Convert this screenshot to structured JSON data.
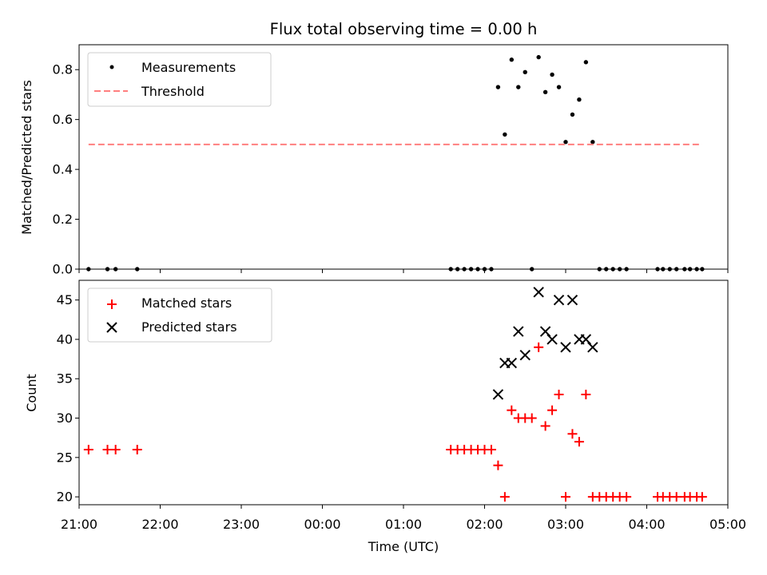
{
  "chart_data": {
    "title": "Flux total observing time = 0.00 h",
    "x_label": "Time (UTC)",
    "x_type": "time",
    "x_range": [
      "21:00",
      "05:00"
    ],
    "x_ticks": [
      "21:00",
      "22:00",
      "23:00",
      "00:00",
      "01:00",
      "02:00",
      "03:00",
      "04:00",
      "05:00"
    ],
    "grid": false,
    "panels": [
      {
        "name": "ratio",
        "type": "scatter",
        "y_label": "Matched/Predicted stars",
        "y_range": [
          0,
          0.9
        ],
        "y_ticks": [
          "0.0",
          "0.2",
          "0.4",
          "0.6",
          "0.8"
        ],
        "legend_position": "top-left",
        "series": [
          {
            "name": "Measurements",
            "marker": "dot",
            "color": "#000000",
            "points": [
              [
                "21:07",
                0.0
              ],
              [
                "21:21",
                0.0
              ],
              [
                "21:27",
                0.0
              ],
              [
                "21:43",
                0.0
              ],
              [
                "01:35",
                0.0
              ],
              [
                "01:40",
                0.0
              ],
              [
                "01:45",
                0.0
              ],
              [
                "01:50",
                0.0
              ],
              [
                "01:55",
                0.0
              ],
              [
                "02:00",
                0.0
              ],
              [
                "02:05",
                0.0
              ],
              [
                "02:10",
                0.73
              ],
              [
                "02:15",
                0.54
              ],
              [
                "02:20",
                0.84
              ],
              [
                "02:25",
                0.73
              ],
              [
                "02:30",
                0.79
              ],
              [
                "02:35",
                0.0
              ],
              [
                "02:40",
                0.85
              ],
              [
                "02:45",
                0.71
              ],
              [
                "02:50",
                0.78
              ],
              [
                "02:55",
                0.73
              ],
              [
                "03:00",
                0.51
              ],
              [
                "03:05",
                0.62
              ],
              [
                "03:10",
                0.68
              ],
              [
                "03:15",
                0.83
              ],
              [
                "03:20",
                0.51
              ],
              [
                "03:25",
                0.0
              ],
              [
                "03:30",
                0.0
              ],
              [
                "03:35",
                0.0
              ],
              [
                "03:40",
                0.0
              ],
              [
                "03:45",
                0.0
              ],
              [
                "04:08",
                0.0
              ],
              [
                "04:12",
                0.0
              ],
              [
                "04:17",
                0.0
              ],
              [
                "04:22",
                0.0
              ],
              [
                "04:28",
                0.0
              ],
              [
                "04:32",
                0.0
              ],
              [
                "04:37",
                0.0
              ],
              [
                "04:41",
                0.0
              ]
            ]
          },
          {
            "name": "Threshold",
            "marker": "dashed-line",
            "color": "#ff7f7f",
            "points": [
              [
                "21:07",
                0.5
              ],
              [
                "04:41",
                0.5
              ]
            ]
          }
        ]
      },
      {
        "name": "counts",
        "type": "scatter",
        "y_label": "Count",
        "y_range": [
          19,
          47.5
        ],
        "y_ticks": [
          "20",
          "25",
          "30",
          "35",
          "40",
          "45"
        ],
        "legend_position": "top-left",
        "series": [
          {
            "name": "Matched stars",
            "marker": "plus",
            "color": "#ff0000",
            "points": [
              [
                "21:07",
                26
              ],
              [
                "21:21",
                26
              ],
              [
                "21:27",
                26
              ],
              [
                "21:43",
                26
              ],
              [
                "01:35",
                26
              ],
              [
                "01:40",
                26
              ],
              [
                "01:45",
                26
              ],
              [
                "01:50",
                26
              ],
              [
                "01:55",
                26
              ],
              [
                "02:00",
                26
              ],
              [
                "02:05",
                26
              ],
              [
                "02:10",
                24
              ],
              [
                "02:15",
                20
              ],
              [
                "02:20",
                31
              ],
              [
                "02:25",
                30
              ],
              [
                "02:30",
                30
              ],
              [
                "02:35",
                30
              ],
              [
                "02:40",
                39
              ],
              [
                "02:45",
                29
              ],
              [
                "02:50",
                31
              ],
              [
                "02:55",
                33
              ],
              [
                "03:00",
                20
              ],
              [
                "03:05",
                28
              ],
              [
                "03:10",
                27
              ],
              [
                "03:15",
                33
              ],
              [
                "03:20",
                20
              ],
              [
                "03:25",
                20
              ],
              [
                "03:30",
                20
              ],
              [
                "03:35",
                20
              ],
              [
                "03:40",
                20
              ],
              [
                "03:45",
                20
              ],
              [
                "04:08",
                20
              ],
              [
                "04:12",
                20
              ],
              [
                "04:17",
                20
              ],
              [
                "04:22",
                20
              ],
              [
                "04:28",
                20
              ],
              [
                "04:32",
                20
              ],
              [
                "04:37",
                20
              ],
              [
                "04:41",
                20
              ]
            ]
          },
          {
            "name": "Predicted stars",
            "marker": "x",
            "color": "#000000",
            "points": [
              [
                "02:10",
                33
              ],
              [
                "02:15",
                37
              ],
              [
                "02:20",
                37
              ],
              [
                "02:25",
                41
              ],
              [
                "02:30",
                38
              ],
              [
                "02:40",
                46
              ],
              [
                "02:45",
                41
              ],
              [
                "02:50",
                40
              ],
              [
                "02:55",
                45
              ],
              [
                "03:00",
                39
              ],
              [
                "03:05",
                45
              ],
              [
                "03:10",
                40
              ],
              [
                "03:15",
                40
              ],
              [
                "03:20",
                39
              ]
            ]
          }
        ]
      }
    ]
  }
}
